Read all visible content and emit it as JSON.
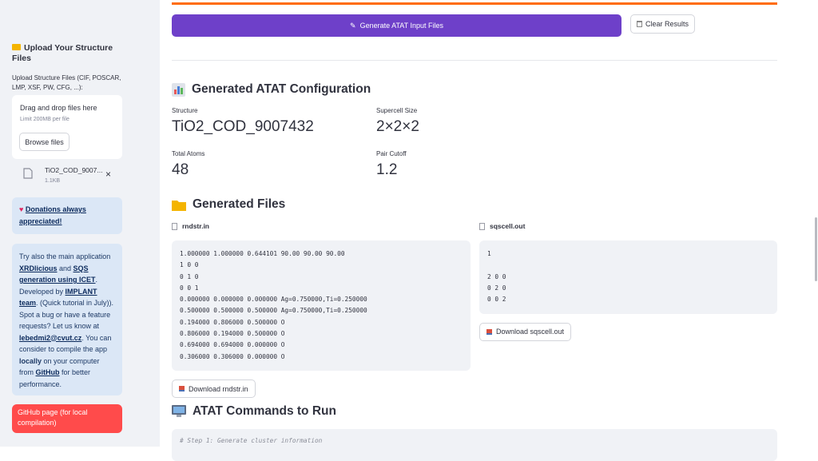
{
  "sidebar": {
    "upload_heading": "Upload Your Structure Files",
    "upload_label": "Upload Structure Files (CIF, POSCAR, LMP, XSF, PW, CFG, ...):",
    "dropzone": {
      "title": "Drag and drop files here",
      "limit": "Limit 200MB per file",
      "button": "Browse files"
    },
    "file": {
      "name": "TiO2_COD_9007...",
      "size": "1.1KB"
    },
    "donation": "Donations always appreciated!",
    "info": {
      "p1": "Try also the main application ",
      "l1": "XRDlicious",
      "p2": " and ",
      "l2": "SQS generation using ICET",
      "p3": ". Developed by ",
      "l3": "IMPLANT team",
      "p4": ". (Quick tutorial in July)). Spot a bug or have a feature requests? Let us know at ",
      "l4": "lebedmi2@cvut.cz",
      "p5": ". You can consider to compile the app ",
      "b1": "locally",
      "p6": " on your computer from ",
      "l5": "GitHub",
      "p7": " for better performance."
    },
    "github_button": "GitHub page (for local compilation)"
  },
  "main": {
    "generate_button": "Generate ATAT Input Files",
    "clear_button": "Clear Results",
    "config_heading": "Generated ATAT Configuration",
    "metrics": [
      {
        "label": "Structure",
        "value": "TiO2_COD_9007432"
      },
      {
        "label": "Supercell Size",
        "value": "2×2×2"
      },
      {
        "label": "Total Atoms",
        "value": "48"
      },
      {
        "label": "Pair Cutoff",
        "value": "1.2"
      }
    ],
    "files_heading": "Generated Files",
    "files": [
      {
        "name": "rndstr.in",
        "lines": [
          "1.000000 1.000000 0.644101 90.00 90.00 90.00",
          "1 0 0",
          "0 1 0",
          "0 0 1",
          "0.000000 0.000000 0.000000 Ag=0.750000,Ti=0.250000",
          "0.500000 0.500000 0.500000 Ag=0.750000,Ti=0.250000",
          "0.194000 0.806000 0.500000 O",
          "0.806000 0.194000 0.500000 O",
          "0.694000 0.694000 0.000000 O",
          "0.306000 0.306000 0.000000 O"
        ],
        "download": "Download rndstr.in"
      },
      {
        "name": "sqscell.out",
        "lines": [
          "1",
          "2 0 0",
          "0 2 0",
          "0 0 2"
        ],
        "download": "Download sqscell.out"
      }
    ],
    "commands_heading": "ATAT Commands to Run",
    "commands": [
      "# Step 1: Generate cluster information"
    ]
  }
}
